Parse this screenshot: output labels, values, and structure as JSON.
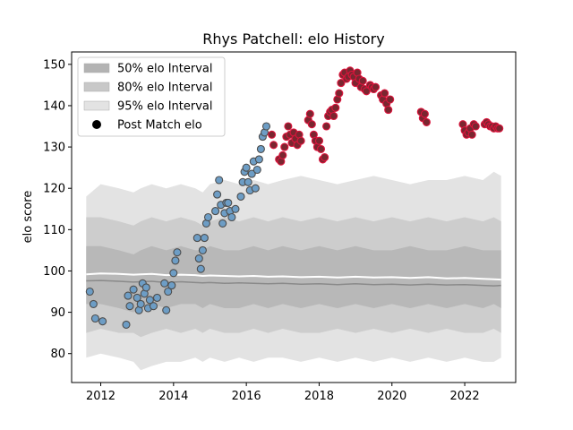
{
  "chart_data": {
    "type": "scatter",
    "title": "Rhys Patchell: elo History",
    "xlabel": "",
    "ylabel": "elo score",
    "xlim": [
      2011.2,
      2023.4
    ],
    "ylim": [
      73,
      153
    ],
    "xticks": [
      2012,
      2014,
      2016,
      2018,
      2020,
      2022
    ],
    "yticks": [
      80,
      90,
      100,
      110,
      120,
      130,
      140,
      150
    ],
    "grid": false,
    "legend_position": "top-left",
    "legend": [
      {
        "label": "50% elo Interval",
        "color": "#b3b3b3",
        "kind": "patch"
      },
      {
        "label": "80% elo Interval",
        "color": "#c8c8c8",
        "kind": "patch"
      },
      {
        "label": "95% elo Interval",
        "color": "#e3e3e3",
        "kind": "patch"
      },
      {
        "label": "Post Match elo",
        "color": "#000000",
        "kind": "marker"
      }
    ],
    "colors": {
      "band95": "#e3e3e3",
      "band80": "#cdcdcd",
      "band50": "#b8b8b8",
      "median": "#ffffff",
      "mean": "#8a8a8a",
      "point_blue": "#6d9dc5",
      "point_red": "#7a2630",
      "point_edge_blue": "#4d4d4d",
      "point_edge_red": "#dc143c"
    },
    "bands": {
      "x": [
        2011.6,
        2012.0,
        2012.5,
        2012.9,
        2013.1,
        2013.4,
        2013.8,
        2014.2,
        2014.6,
        2014.8,
        2015.0,
        2015.4,
        2015.8,
        2016.2,
        2016.6,
        2017.0,
        2017.5,
        2018.0,
        2018.5,
        2019.0,
        2019.5,
        2020.0,
        2020.5,
        2021.0,
        2021.5,
        2022.0,
        2022.5,
        2022.8,
        2023.0
      ],
      "p95_low": [
        79,
        80,
        79,
        78,
        76,
        77,
        78,
        78,
        79,
        78,
        79,
        78,
        79,
        78,
        79,
        79,
        78,
        79,
        78,
        79,
        78,
        79,
        78,
        79,
        78,
        79,
        78,
        78,
        79
      ],
      "p95_high": [
        118,
        121,
        120,
        119,
        120,
        121,
        120,
        121,
        120,
        119,
        121,
        122,
        121,
        122,
        121,
        122,
        123,
        122,
        121,
        122,
        123,
        122,
        121,
        122,
        122,
        123,
        122,
        124,
        123
      ],
      "p80_low": [
        85,
        86,
        85,
        85,
        84,
        85,
        86,
        85,
        86,
        85,
        86,
        85,
        85,
        86,
        85,
        86,
        85,
        85,
        86,
        85,
        86,
        85,
        86,
        85,
        86,
        85,
        85,
        86,
        85
      ],
      "p80_high": [
        113,
        113,
        112,
        111,
        112,
        113,
        112,
        113,
        112,
        111,
        112,
        113,
        112,
        113,
        112,
        113,
        112,
        113,
        112,
        113,
        112,
        113,
        112,
        113,
        112,
        113,
        112,
        113,
        112
      ],
      "p50_low": [
        92,
        92,
        91,
        90,
        91,
        92,
        91,
        92,
        92,
        91,
        92,
        91,
        91,
        92,
        91,
        92,
        91,
        92,
        91,
        92,
        91,
        92,
        91,
        92,
        91,
        92,
        91,
        92,
        91
      ],
      "p50_high": [
        106,
        106,
        105,
        104,
        105,
        106,
        105,
        106,
        105,
        105,
        106,
        105,
        105,
        106,
        105,
        106,
        105,
        106,
        105,
        106,
        105,
        105,
        106,
        105,
        105,
        106,
        105,
        105,
        105
      ],
      "median": [
        99.2,
        99.4,
        99.3,
        99.1,
        99.2,
        99.3,
        99.0,
        99.1,
        99.0,
        98.8,
        98.9,
        98.8,
        98.7,
        98.8,
        98.6,
        98.7,
        98.5,
        98.6,
        98.4,
        98.6,
        98.4,
        98.5,
        98.3,
        98.5,
        98.2,
        98.3,
        98.1,
        98.0,
        97.9
      ],
      "mean": [
        97.6,
        97.7,
        97.5,
        97.3,
        97.4,
        97.5,
        97.2,
        97.4,
        97.2,
        97.1,
        97.2,
        97.0,
        97.1,
        97.0,
        96.9,
        97.0,
        96.8,
        96.9,
        96.7,
        96.9,
        96.7,
        96.8,
        96.6,
        96.8,
        96.6,
        96.7,
        96.5,
        96.4,
        96.5
      ]
    },
    "series": [
      {
        "color_key": "blue",
        "points": [
          [
            2011.7,
            95.0
          ],
          [
            2011.8,
            92.0
          ],
          [
            2011.85,
            88.5
          ],
          [
            2012.05,
            87.8
          ],
          [
            2012.7,
            87.0
          ],
          [
            2012.75,
            94.0
          ],
          [
            2012.8,
            91.5
          ],
          [
            2012.9,
            95.5
          ],
          [
            2013.0,
            93.5
          ],
          [
            2013.05,
            90.5
          ],
          [
            2013.1,
            92.0
          ],
          [
            2013.15,
            97.0
          ],
          [
            2013.2,
            94.5
          ],
          [
            2013.25,
            96.0
          ],
          [
            2013.3,
            91.0
          ],
          [
            2013.35,
            93.0
          ],
          [
            2013.45,
            91.5
          ],
          [
            2013.55,
            93.5
          ],
          [
            2013.75,
            97.0
          ],
          [
            2013.8,
            90.5
          ],
          [
            2013.85,
            95.0
          ],
          [
            2013.95,
            96.5
          ],
          [
            2014.0,
            99.5
          ],
          [
            2014.05,
            102.5
          ],
          [
            2014.1,
            104.5
          ],
          [
            2014.65,
            108.0
          ],
          [
            2014.7,
            103.0
          ],
          [
            2014.75,
            100.5
          ],
          [
            2014.8,
            105.0
          ],
          [
            2014.85,
            108.0
          ],
          [
            2014.9,
            111.5
          ],
          [
            2014.95,
            113.0
          ],
          [
            2015.15,
            114.5
          ],
          [
            2015.2,
            118.5
          ],
          [
            2015.25,
            122.0
          ],
          [
            2015.3,
            116.0
          ],
          [
            2015.35,
            111.5
          ],
          [
            2015.4,
            114.0
          ],
          [
            2015.45,
            116.5
          ],
          [
            2015.5,
            116.5
          ],
          [
            2015.55,
            114.5
          ],
          [
            2015.6,
            113.0
          ],
          [
            2015.7,
            115.0
          ],
          [
            2015.85,
            118.0
          ],
          [
            2015.9,
            121.5
          ],
          [
            2015.95,
            124.0
          ],
          [
            2016.0,
            125.0
          ],
          [
            2016.05,
            121.5
          ],
          [
            2016.1,
            119.5
          ],
          [
            2016.15,
            123.5
          ],
          [
            2016.2,
            126.5
          ],
          [
            2016.25,
            120.0
          ],
          [
            2016.3,
            124.5
          ],
          [
            2016.35,
            127.0
          ],
          [
            2016.4,
            129.5
          ],
          [
            2016.45,
            132.5
          ],
          [
            2016.5,
            133.5
          ],
          [
            2016.55,
            135.0
          ]
        ]
      },
      {
        "color_key": "red",
        "points": [
          [
            2016.7,
            133.0
          ],
          [
            2016.75,
            130.5
          ],
          [
            2016.9,
            127.0
          ],
          [
            2016.95,
            126.5
          ],
          [
            2017.0,
            128.0
          ],
          [
            2017.05,
            130.0
          ],
          [
            2017.1,
            132.5
          ],
          [
            2017.15,
            135.0
          ],
          [
            2017.2,
            133.0
          ],
          [
            2017.25,
            131.0
          ],
          [
            2017.3,
            133.5
          ],
          [
            2017.35,
            132.0
          ],
          [
            2017.4,
            130.5
          ],
          [
            2017.45,
            133.0
          ],
          [
            2017.5,
            131.5
          ],
          [
            2017.7,
            136.5
          ],
          [
            2017.75,
            138.0
          ],
          [
            2017.8,
            135.5
          ],
          [
            2017.85,
            133.0
          ],
          [
            2017.9,
            131.5
          ],
          [
            2017.95,
            130.0
          ],
          [
            2018.0,
            131.5
          ],
          [
            2018.05,
            129.5
          ],
          [
            2018.1,
            127.0
          ],
          [
            2018.15,
            127.5
          ],
          [
            2018.2,
            135.0
          ],
          [
            2018.25,
            137.5
          ],
          [
            2018.3,
            138.5
          ],
          [
            2018.35,
            139.0
          ],
          [
            2018.4,
            137.5
          ],
          [
            2018.45,
            139.5
          ],
          [
            2018.5,
            141.5
          ],
          [
            2018.55,
            143.0
          ],
          [
            2018.6,
            145.5
          ],
          [
            2018.65,
            147.5
          ],
          [
            2018.7,
            148.0
          ],
          [
            2018.75,
            146.5
          ],
          [
            2018.8,
            147.0
          ],
          [
            2018.85,
            148.5
          ],
          [
            2018.9,
            147.5
          ],
          [
            2018.95,
            147.0
          ],
          [
            2019.0,
            145.5
          ],
          [
            2019.05,
            148.0
          ],
          [
            2019.1,
            146.5
          ],
          [
            2019.15,
            144.5
          ],
          [
            2019.2,
            146.0
          ],
          [
            2019.25,
            144.0
          ],
          [
            2019.3,
            143.5
          ],
          [
            2019.4,
            145.0
          ],
          [
            2019.45,
            144.5
          ],
          [
            2019.5,
            144.0
          ],
          [
            2019.55,
            144.5
          ],
          [
            2019.7,
            142.5
          ],
          [
            2019.75,
            141.5
          ],
          [
            2019.8,
            143.0
          ],
          [
            2019.85,
            140.5
          ],
          [
            2019.9,
            139.0
          ],
          [
            2019.95,
            141.5
          ],
          [
            2020.8,
            138.5
          ],
          [
            2020.85,
            137.0
          ],
          [
            2020.9,
            138.0
          ],
          [
            2020.95,
            136.0
          ],
          [
            2021.95,
            135.5
          ],
          [
            2022.0,
            134.0
          ],
          [
            2022.05,
            133.0
          ],
          [
            2022.1,
            133.5
          ],
          [
            2022.15,
            134.5
          ],
          [
            2022.2,
            133.0
          ],
          [
            2022.25,
            135.5
          ],
          [
            2022.3,
            135.0
          ],
          [
            2022.55,
            135.5
          ],
          [
            2022.6,
            136.0
          ],
          [
            2022.65,
            135.5
          ],
          [
            2022.7,
            135.0
          ],
          [
            2022.75,
            135.0
          ],
          [
            2022.8,
            134.5
          ],
          [
            2022.85,
            135.0
          ],
          [
            2022.9,
            134.5
          ],
          [
            2022.95,
            134.5
          ]
        ]
      }
    ]
  }
}
